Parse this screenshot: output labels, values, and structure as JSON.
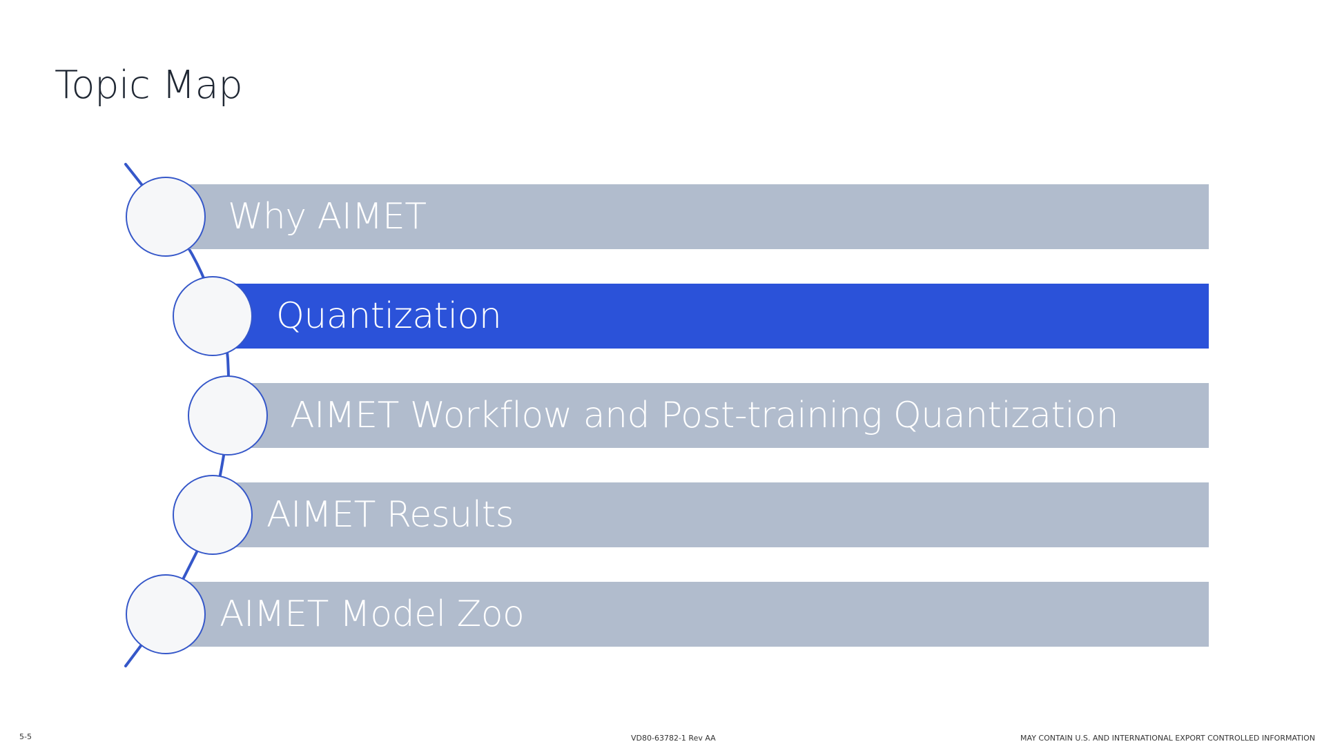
{
  "slide": {
    "title": "Topic Map"
  },
  "topics": [
    {
      "label": "Why AIMET",
      "active": false
    },
    {
      "label": "Quantization",
      "active": true
    },
    {
      "label": "AIMET Workflow and Post-training Quantization",
      "active": false
    },
    {
      "label": "AIMET Results",
      "active": false
    },
    {
      "label": "AIMET Model Zoo",
      "active": false
    }
  ],
  "colors": {
    "active_bar": "#2b52d9",
    "inactive_bar": "#b1bccd",
    "node_outline": "#3557c9",
    "node_fill": "#f6f7f9"
  },
  "footer": {
    "page_number": "5-5",
    "doc_id": "VD80-63782-1 Rev AA",
    "export_notice": "MAY CONTAIN U.S. AND INTERNATIONAL EXPORT CONTROLLED INFORMATION"
  }
}
